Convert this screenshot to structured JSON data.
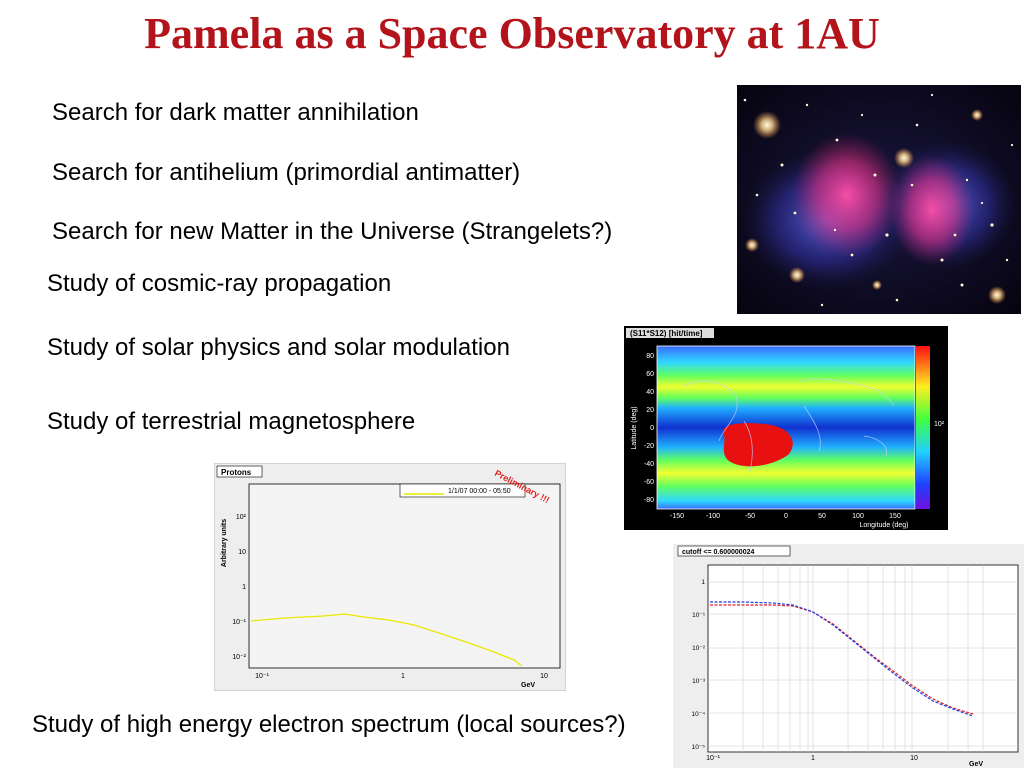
{
  "slide": {
    "title": "Pamela as a Space Observatory at 1AU",
    "bullets": [
      "Search for dark matter annihilation",
      "Search for antihelium (primordial antimatter)",
      "Search for new Matter in the Universe (Strangelets?)",
      "Study of cosmic-ray propagation",
      "Study of solar physics and solar modulation",
      "Study of terrestrial magnetosphere",
      "Study of high energy electron spectrum (local sources?)"
    ]
  },
  "map_plot": {
    "panel_title": "(S11*S12) [hit/time]",
    "ylabel": "Latitude (deg)",
    "xlabel": "Longitude (deg)",
    "y_ticks": [
      "80",
      "60",
      "40",
      "20",
      "0",
      "-20",
      "-40",
      "-60",
      "-80"
    ],
    "x_ticks": [
      "-150",
      "-100",
      "-50",
      "0",
      "50",
      "100",
      "150"
    ],
    "colorbar_label": "10²"
  },
  "protons_plot": {
    "panel_title": "Protons",
    "legend": "1/1/07 00:00 - 05:50",
    "stamp": "Preliminary !!!",
    "ylabel": "Arbitrary units",
    "xlabel": "GeV",
    "y_ticks": [
      "10²",
      "10",
      "1",
      "10⁻¹",
      "10⁻²"
    ],
    "x_ticks": [
      "10⁻¹",
      "1",
      "10"
    ]
  },
  "electron_plot": {
    "panel_title": "cutoff <= 0.600000024",
    "xlabel": "GeV",
    "y_ticks": [
      "1",
      "10⁻¹",
      "10⁻²",
      "10⁻³",
      "10⁻⁴",
      "10⁻⁵"
    ],
    "x_ticks": [
      "10⁻¹",
      "1",
      "10"
    ]
  }
}
